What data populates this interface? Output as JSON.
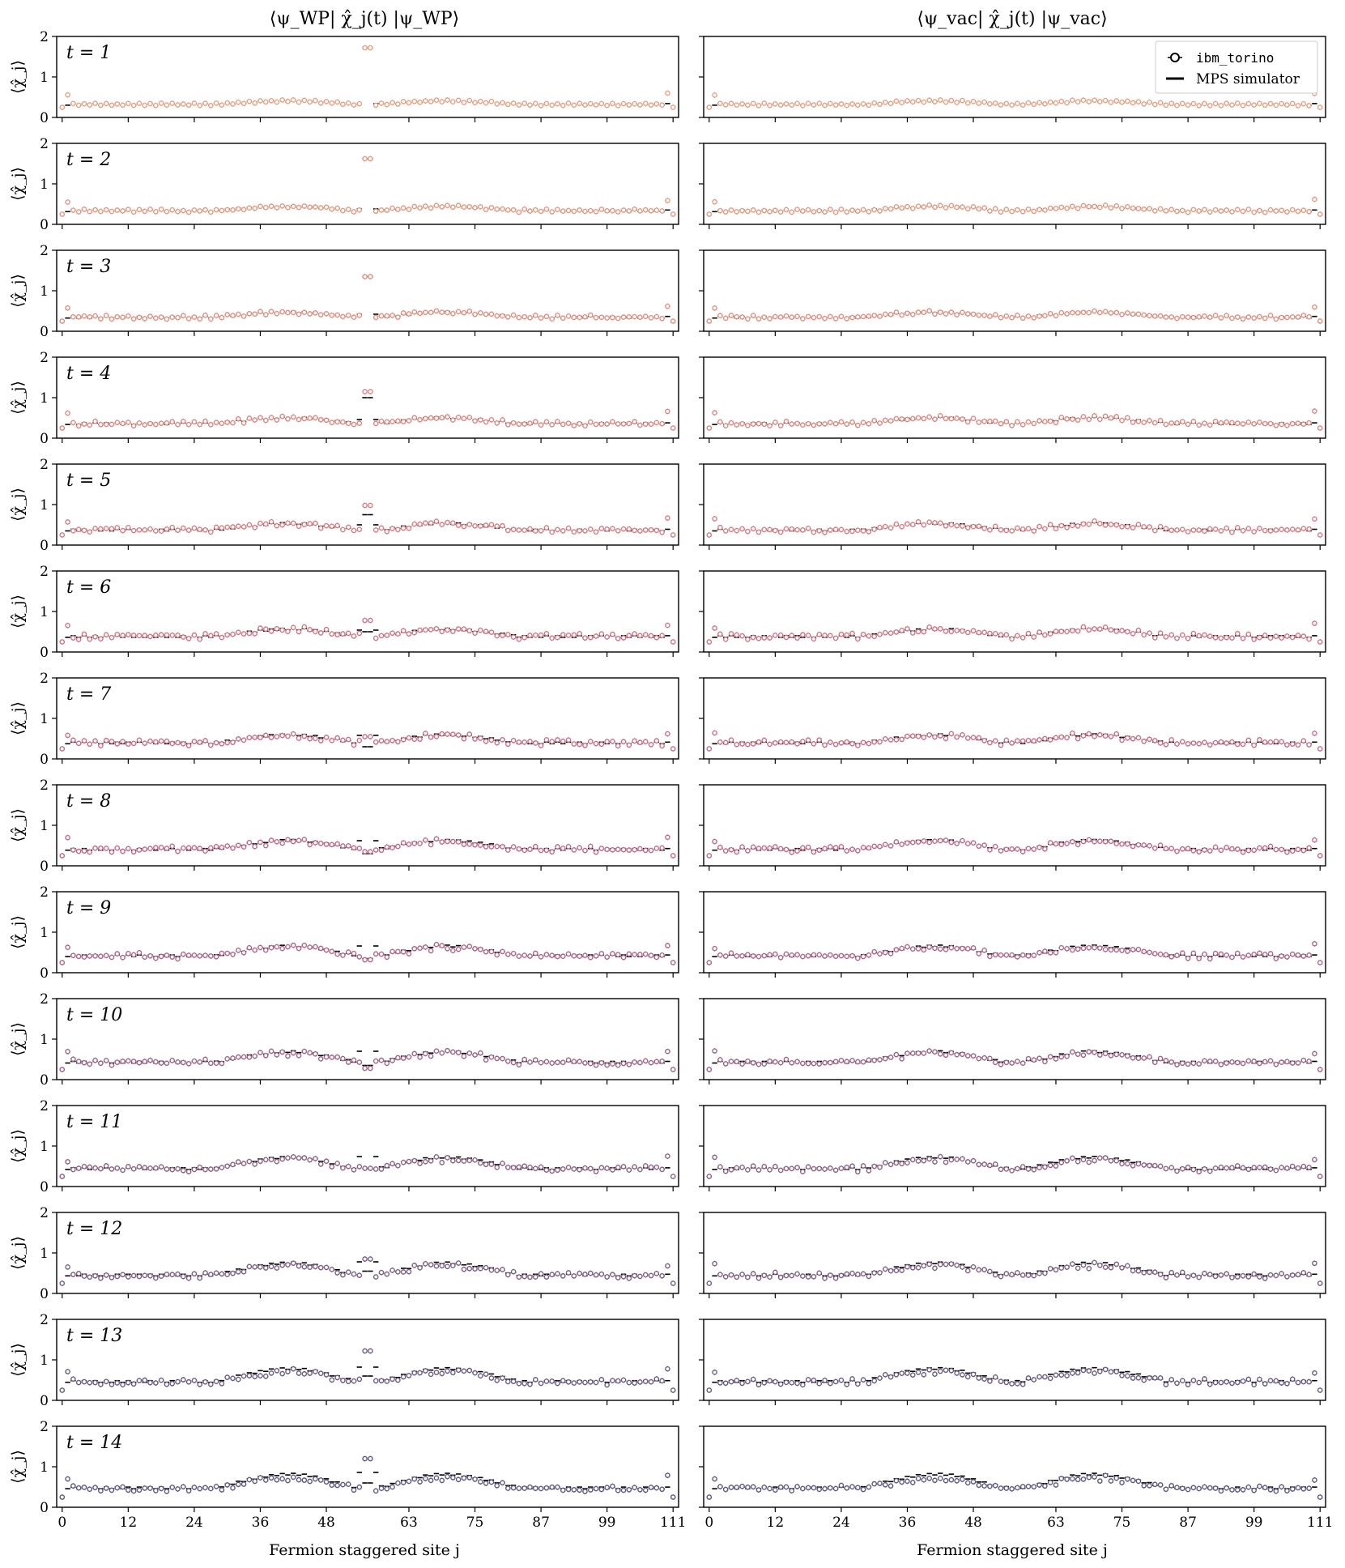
{
  "chart_data": {
    "type": "scatter",
    "columns": [
      {
        "title": "⟨ψ_WP| χ̂_j(t) |ψ_WP⟩",
        "xlabel": "Fermion staggered site j",
        "state": "wavepacket"
      },
      {
        "title": "⟨ψ_vac| χ̂_j(t) |ψ_vac⟩",
        "xlabel": "Fermion staggered site j",
        "state": "vacuum"
      }
    ],
    "ylabel": "⟨χ̂_j⟩",
    "ylim": [
      0,
      2
    ],
    "yticks": [
      "0",
      "1",
      "2"
    ],
    "xlim": [
      -1,
      112
    ],
    "xticks": [
      0,
      12,
      24,
      36,
      48,
      63,
      75,
      87,
      99,
      111
    ],
    "num_sites": 112,
    "time_steps": [
      {
        "t": 1,
        "label": "t = 1"
      },
      {
        "t": 2,
        "label": "t = 2"
      },
      {
        "t": 3,
        "label": "t = 3"
      },
      {
        "t": 4,
        "label": "t = 4"
      },
      {
        "t": 5,
        "label": "t = 5"
      },
      {
        "t": 6,
        "label": "t = 6"
      },
      {
        "t": 7,
        "label": "t = 7"
      },
      {
        "t": 8,
        "label": "t = 8"
      },
      {
        "t": 9,
        "label": "t = 9"
      },
      {
        "t": 10,
        "label": "t = 10"
      },
      {
        "t": 11,
        "label": "t = 11"
      },
      {
        "t": 12,
        "label": "t = 12"
      },
      {
        "t": 13,
        "label": "t = 13"
      },
      {
        "t": 14,
        "label": "t = 14"
      }
    ],
    "series": [
      {
        "name": "ibm_torino",
        "marker": "open circle with error bar",
        "colors": [
          "#e8a184",
          "#e49a82",
          "#e19182",
          "#dd8883",
          "#d87f84",
          "#d27785",
          "#ca7086",
          "#c16b88",
          "#b06888",
          "#9e6587",
          "#8d6386",
          "#7c6084",
          "#6c5c83",
          "#5e5982"
        ]
      },
      {
        "name": "MPS simulator",
        "marker": "horizontal dash",
        "color": "#000000"
      }
    ],
    "legend": {
      "placement": "top-right",
      "panel": "vacuum column, t = 1"
    },
    "wavepacket_center": [
      55,
      56
    ],
    "peak_values_wavepacket_center": [
      1.72,
      1.62,
      1.35,
      1.15,
      0.98,
      0.78,
      0.55,
      0.35,
      0.32,
      0.28,
      0.45,
      0.85,
      1.22,
      1.2
    ],
    "mps_sim_peak_center": [
      1.72,
      1.62,
      1.35,
      1.0,
      0.75,
      0.5,
      0.3,
      0.3,
      0.35,
      0.35,
      0.45,
      0.55,
      0.6,
      0.6
    ],
    "envelope_note": "values oscillate between ~0.3 and ~1.0 across sites; device data damp toward ~0.45 at late times"
  }
}
